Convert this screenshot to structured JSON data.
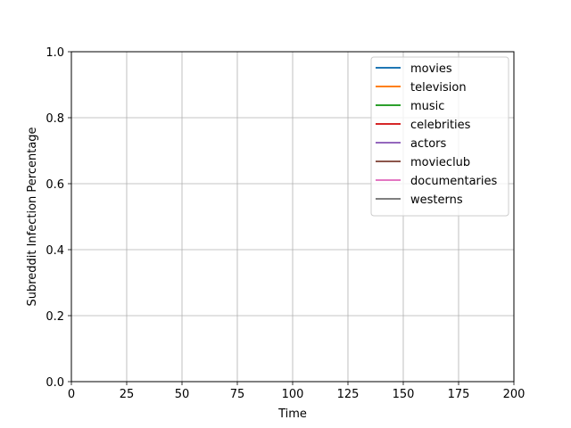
{
  "chart_data": {
    "type": "line",
    "title": "",
    "xlabel": "Time",
    "ylabel": "Subreddit Infection Percentage",
    "xlim": [
      0,
      200
    ],
    "ylim": [
      0.0,
      1.0
    ],
    "x_ticks": [
      0,
      25,
      50,
      75,
      100,
      125,
      150,
      175,
      200
    ],
    "x_tick_labels": [
      "0",
      "25",
      "50",
      "75",
      "100",
      "125",
      "150",
      "175",
      "200"
    ],
    "y_ticks": [
      0.0,
      0.2,
      0.4,
      0.6,
      0.8,
      1.0
    ],
    "y_tick_labels": [
      "0.0",
      "0.2",
      "0.4",
      "0.6",
      "0.8",
      "1.0"
    ],
    "grid": true,
    "legend_position": "top-right",
    "series": [
      {
        "name": "movies",
        "color": "#1f77b4",
        "x": [],
        "y": []
      },
      {
        "name": "television",
        "color": "#ff7f0e",
        "x": [],
        "y": []
      },
      {
        "name": "music",
        "color": "#2ca02c",
        "x": [],
        "y": []
      },
      {
        "name": "celebrities",
        "color": "#d62728",
        "x": [],
        "y": []
      },
      {
        "name": "actors",
        "color": "#9467bd",
        "x": [],
        "y": []
      },
      {
        "name": "movieclub",
        "color": "#8c564b",
        "x": [],
        "y": []
      },
      {
        "name": "documentaries",
        "color": "#e377c2",
        "x": [],
        "y": []
      },
      {
        "name": "westerns",
        "color": "#7f7f7f",
        "x": [],
        "y": []
      }
    ]
  }
}
